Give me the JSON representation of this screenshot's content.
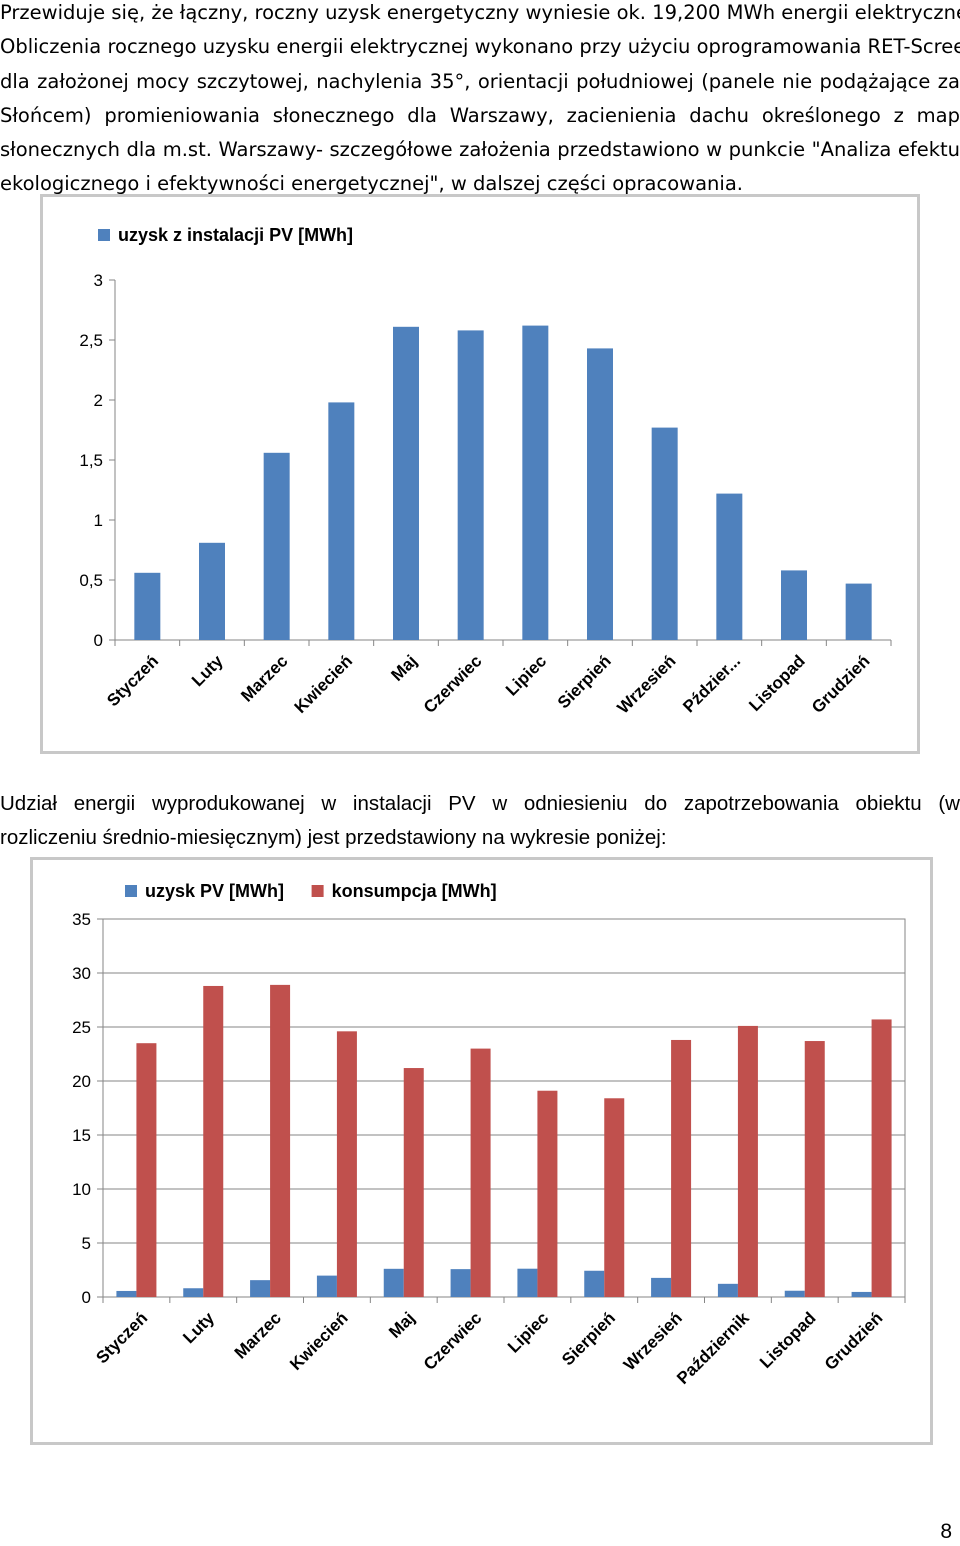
{
  "intro_paragraph": {
    "lines": [
      "Przewiduje się, że łączny, roczny uzysk energetyczny wyniesie ok. 19,200 MWh energii elektrycznej.",
      "Obliczenia rocznego uzysku energii elektrycznej wykonano przy użyciu oprogramowania RET-Screen",
      "dla założonej mocy szczytowej, nachylenia 35°, orientacji południowej (panele nie podążające za",
      "Słońcem) promieniowania słonecznego dla Warszawy, zacienienia dachu określonego z map",
      "słonecznych dla m.st. Warszawy- szczegółowe założenia przedstawiono w punkcie \"Analiza efektu",
      "ekologicznego i efektywności energetycznej\", w dalszej części opracowania."
    ]
  },
  "second_paragraph": {
    "lines": [
      "Udział energii wyprodukowanej w instalacji PV w odniesieniu do zapotrzebowania obiektu (w",
      "rozliczeniu średnio-miesięcznym) jest przedstawiony na wykresie poniżej:"
    ]
  },
  "page_number": "8",
  "chart_data": [
    {
      "type": "bar",
      "categories": [
        "Styczeń",
        "Luty",
        "Marzec",
        "Kwiecień",
        "Maj",
        "Czerwiec",
        "Lipiec",
        "Sierpień",
        "Wrzesień",
        "Pździer...",
        "Listopad",
        "Grudzień"
      ],
      "series": [
        {
          "name": "uzysk z instalacji PV [MWh]",
          "color": "#4f81bd",
          "values": [
            0.56,
            0.81,
            1.56,
            1.98,
            2.61,
            2.58,
            2.62,
            2.43,
            1.77,
            1.22,
            0.58,
            0.47
          ]
        }
      ],
      "y_ticks": [
        "0",
        "0,5",
        "1",
        "1,5",
        "2",
        "2,5",
        "3"
      ],
      "ylim": [
        0,
        3
      ],
      "grid": false,
      "legend": "top-left"
    },
    {
      "type": "bar",
      "categories": [
        "Styczeń",
        "Luty",
        "Marzec",
        "Kwiecień",
        "Maj",
        "Czerwiec",
        "Lipiec",
        "Sierpień",
        "Wrzesień",
        "Październik",
        "Listopad",
        "Grudzień"
      ],
      "series": [
        {
          "name": "uzysk PV [MWh]",
          "color": "#4f81bd",
          "values": [
            0.56,
            0.81,
            1.56,
            1.98,
            2.61,
            2.58,
            2.62,
            2.43,
            1.77,
            1.22,
            0.58,
            0.47
          ]
        },
        {
          "name": "konsumpcja [MWh]",
          "color": "#c0504d",
          "values": [
            23.5,
            28.8,
            28.9,
            24.6,
            21.2,
            23.0,
            19.1,
            18.4,
            23.8,
            25.1,
            23.7,
            25.7
          ]
        }
      ],
      "y_ticks": [
        "0",
        "5",
        "10",
        "15",
        "20",
        "25",
        "30",
        "35"
      ],
      "ylim": [
        0,
        35
      ],
      "grid": true,
      "legend": "top"
    }
  ]
}
